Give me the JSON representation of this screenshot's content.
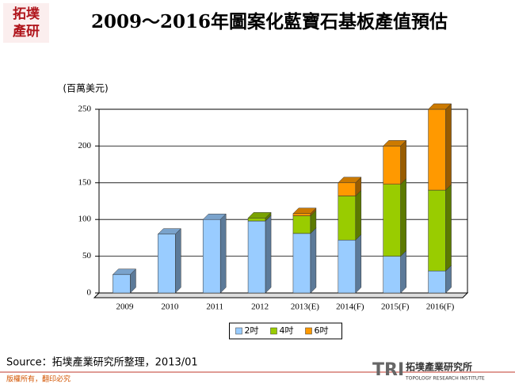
{
  "header": {
    "logo_lines": [
      "拓墣",
      "產研"
    ]
  },
  "chart_data": {
    "type": "bar",
    "stacked": true,
    "title": "2009～2016年圖案化藍寶石基板產值預估",
    "y_label": "(百萬美元)",
    "categories": [
      "2009",
      "2010",
      "2011",
      "2012",
      "2013(E)",
      "2014(F)",
      "2015(F)",
      "2016(F)"
    ],
    "series": [
      {
        "name": "2吋",
        "color": "#99ccff",
        "values": [
          25,
          80,
          100,
          98,
          81,
          72,
          50,
          30
        ]
      },
      {
        "name": "4吋",
        "color": "#99cc00",
        "values": [
          0,
          0,
          0,
          4,
          24,
          60,
          98,
          110
        ]
      },
      {
        "name": "6吋",
        "color": "#ff9900",
        "values": [
          0,
          0,
          0,
          0,
          3,
          18,
          52,
          110
        ]
      }
    ],
    "ylim": [
      0,
      250
    ],
    "yticks": [
      0,
      50,
      100,
      150,
      200,
      250
    ],
    "grid": true,
    "legend": "bottom"
  },
  "footer": {
    "source": "Source：拓墣產業研究所整理，2013/01",
    "copyright": "版權所有，翻印必究",
    "brand": "TRI",
    "brand_name": "拓墣產業研究所",
    "brand_english": "TOPOLOGY RESEARCH INSTITUTE"
  }
}
